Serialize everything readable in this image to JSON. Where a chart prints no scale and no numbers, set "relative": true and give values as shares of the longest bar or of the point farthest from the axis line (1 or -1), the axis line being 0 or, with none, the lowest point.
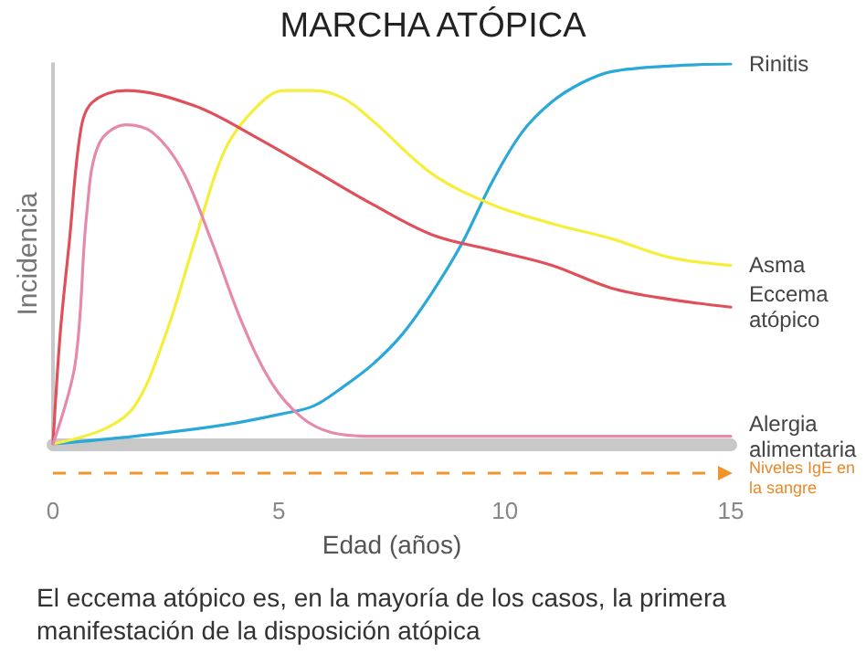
{
  "chart_data": {
    "type": "line",
    "title": "MARCHA ATÓPICA",
    "xlabel": "Edad (años)",
    "ylabel": "Incidencia",
    "relative": true,
    "xlim": [
      0,
      15
    ],
    "xticks": [
      0,
      5,
      10,
      15
    ],
    "grid": false,
    "legend": false,
    "marker": "none",
    "line_style": "solid",
    "annotations": [
      "Niveles IgE en la sangre",
      "El eccema atópico es, en la mayoría de los casos, la primera manifestación de la disposición atópica"
    ],
    "series": [
      {
        "name": "Rinitis",
        "color": "#2aa8d8",
        "x": [
          0,
          1.81,
          3.79,
          5.1,
          5.77,
          6.42,
          7.08,
          7.74,
          8.4,
          9.06,
          9.72,
          10.38,
          11.04,
          11.7,
          12.36,
          13.68,
          15
        ],
        "values": [
          0,
          0.02,
          0.05,
          0.08,
          0.1,
          0.15,
          0.21,
          0.29,
          0.4,
          0.53,
          0.69,
          0.82,
          0.9,
          0.95,
          0.98,
          0.995,
          1
        ]
      },
      {
        "name": "Asma",
        "color": "#f5ee3a",
        "x": [
          0,
          1.15,
          1.81,
          2.47,
          3.13,
          3.79,
          4.45,
          5.1,
          5.77,
          6.42,
          7.08,
          8.4,
          9.72,
          11.04,
          12.36,
          13.68,
          15
        ],
        "values": [
          0,
          0.04,
          0.1,
          0.28,
          0.53,
          0.77,
          0.88,
          0.93,
          0.93,
          0.91,
          0.85,
          0.71,
          0.63,
          0.58,
          0.54,
          0.49,
          0.47
        ]
      },
      {
        "name": "Eccema atópico",
        "color": "#e0505a",
        "x": [
          0,
          0.16,
          0.36,
          0.62,
          0.88,
          1.61,
          3.13,
          4.45,
          5.77,
          7.08,
          8.4,
          9.72,
          11.04,
          12.36,
          13.68,
          15
        ],
        "values": [
          0,
          0.29,
          0.53,
          0.83,
          0.9,
          0.93,
          0.89,
          0.81,
          0.72,
          0.63,
          0.55,
          0.51,
          0.47,
          0.41,
          0.38,
          0.36
        ]
      },
      {
        "name": "Alergia alimentaria",
        "color": "#e58aad",
        "x": [
          0,
          0.49,
          0.75,
          1.02,
          1.61,
          2.2,
          2.86,
          3.52,
          4.18,
          4.84,
          5.5,
          6.16,
          7.08,
          15
        ],
        "values": [
          0,
          0.21,
          0.61,
          0.79,
          0.84,
          0.82,
          0.72,
          0.53,
          0.32,
          0.16,
          0.07,
          0.03,
          0.02,
          0.02
        ]
      }
    ]
  }
}
